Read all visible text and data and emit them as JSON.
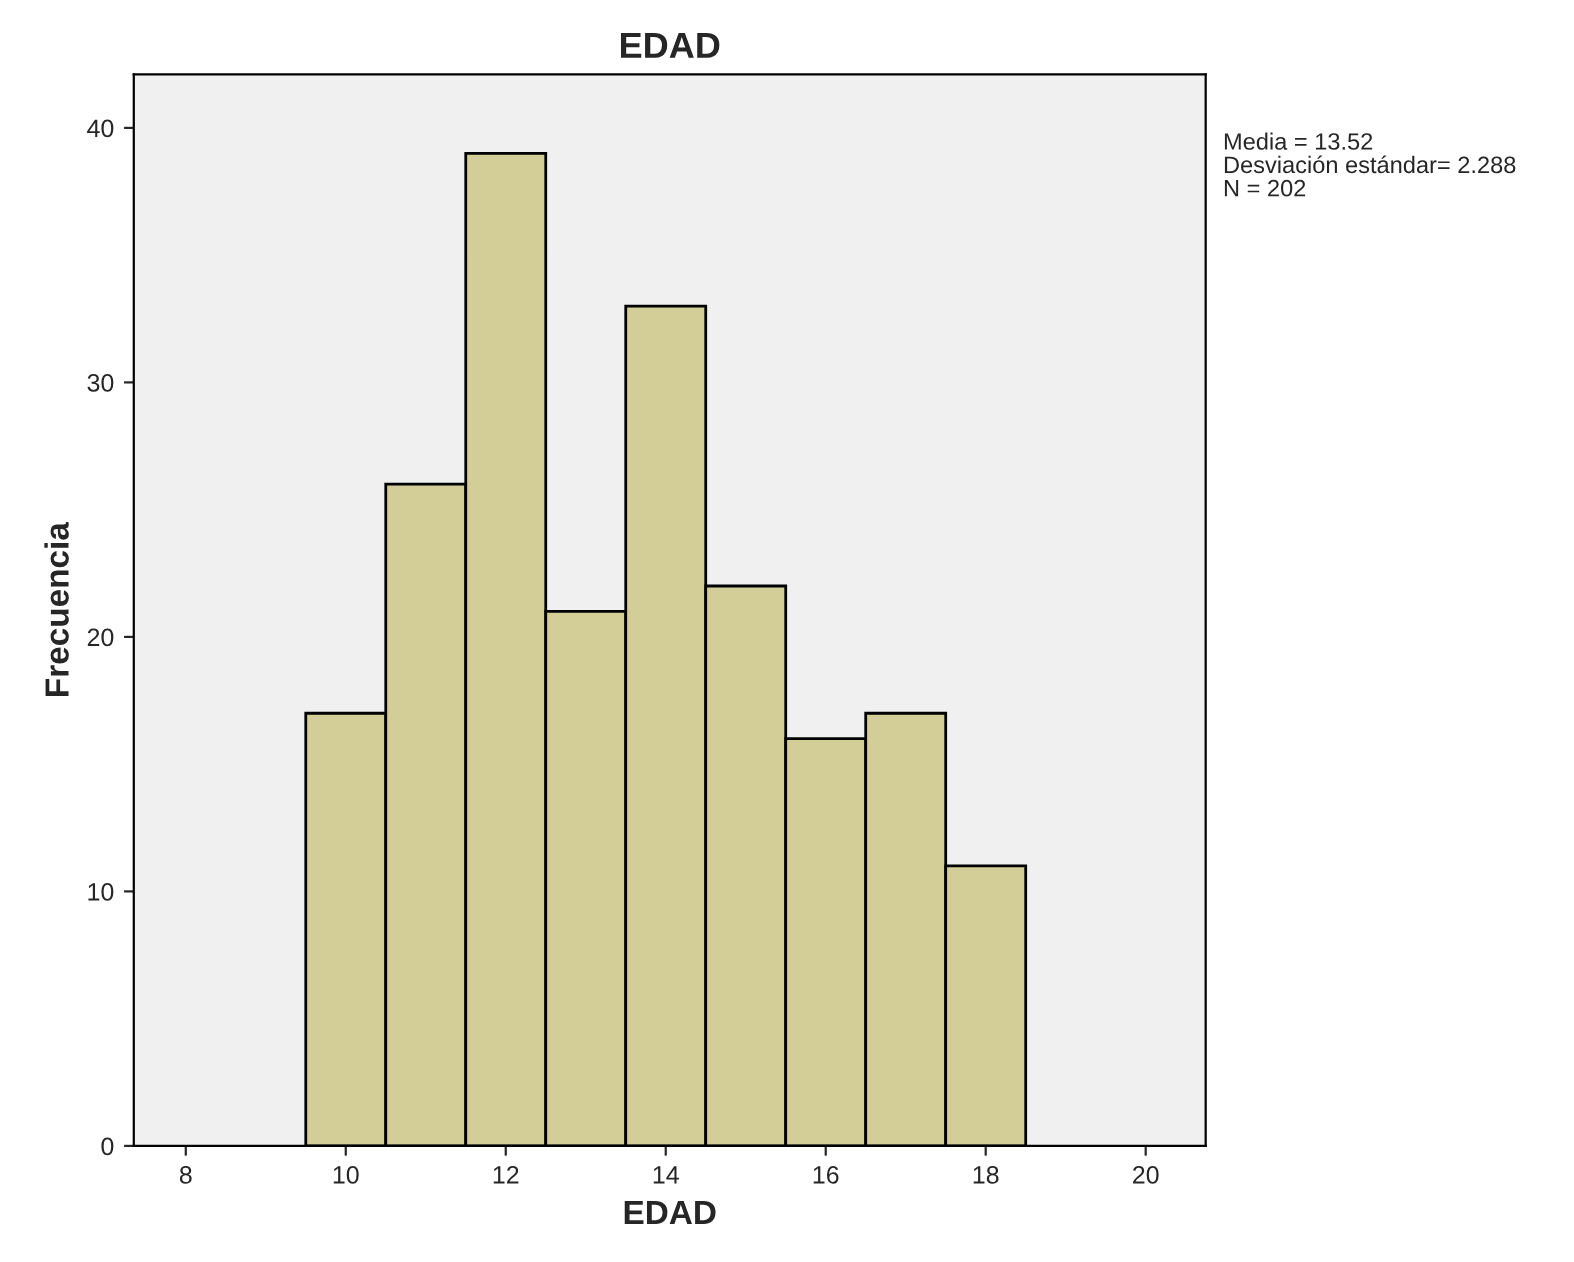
{
  "chart_data": {
    "type": "histogram",
    "title": "EDAD",
    "xlabel": "EDAD",
    "ylabel": "Frecuencia",
    "bins": [
      9.5,
      10.5,
      11.5,
      12.5,
      13.5,
      14.5,
      15.5,
      16.5,
      17.5,
      18.5
    ],
    "values": [
      17,
      26,
      39,
      21,
      33,
      22,
      16,
      17,
      11
    ],
    "color": "#d3ce97",
    "xlim": [
      7.35,
      20.75
    ],
    "xticks": [
      8,
      10,
      12,
      14,
      16,
      18,
      20
    ],
    "ylim": [
      0,
      42.1
    ],
    "yticks": [
      0,
      10,
      20,
      30,
      40
    ],
    "grid": false,
    "annotations": [
      "Media = 13.52",
      "Desviación estándar= 2.288",
      "N = 202"
    ]
  }
}
